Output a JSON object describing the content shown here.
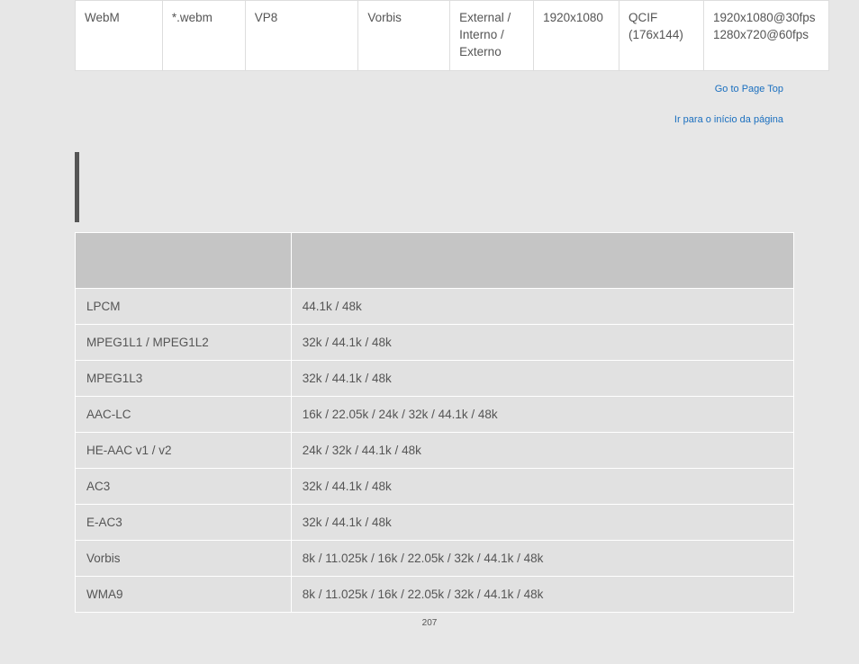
{
  "table1": {
    "rows": [
      {
        "format": "WebM",
        "ext": "*.webm",
        "video_codec": "VP8",
        "audio_codec": "Vorbis",
        "subtitle": "External / Interno / Externo",
        "max_res": "1920x1080",
        "min_res": "QCIF (176x144)",
        "fps": "1920x1080@30fps 1280x720@60fps"
      }
    ]
  },
  "links": {
    "top_en": "Go to Page Top",
    "top_pt": "Ir para o início da página"
  },
  "table2": {
    "header": {
      "col1": "",
      "col2": ""
    },
    "rows": [
      {
        "codec": "LPCM",
        "rates": "44.1k / 48k"
      },
      {
        "codec": "MPEG1L1 / MPEG1L2",
        "rates": "32k / 44.1k / 48k"
      },
      {
        "codec": "MPEG1L3",
        "rates": "32k / 44.1k / 48k"
      },
      {
        "codec": "AAC-LC",
        "rates": "16k / 22.05k / 24k / 32k / 44.1k / 48k"
      },
      {
        "codec": "HE-AAC v1 / v2",
        "rates": "24k / 32k / 44.1k / 48k"
      },
      {
        "codec": "AC3",
        "rates": "32k / 44.1k / 48k"
      },
      {
        "codec": "E-AC3",
        "rates": "32k / 44.1k / 48k"
      },
      {
        "codec": "Vorbis",
        "rates": "8k / 11.025k / 16k / 22.05k / 32k / 44.1k / 48k"
      },
      {
        "codec": "WMA9",
        "rates": "8k / 11.025k / 16k / 22.05k / 32k / 44.1k / 48k"
      }
    ]
  },
  "page_number": "207",
  "colors": {
    "page_bg": "#e7e7e7",
    "table1_bg": "#ffffff",
    "table1_border": "#dddddd",
    "table2_header_bg": "#c5c5c5",
    "table2_cell_bg": "#e1e1e1",
    "link_color": "#1a6fbf",
    "text_color": "#555555",
    "marker_color": "#555555"
  }
}
